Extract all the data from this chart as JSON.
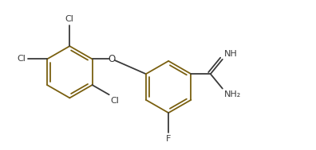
{
  "bg": "#ffffff",
  "bond_color": "#3a3a3a",
  "aromatic_color": "#7a6010",
  "lw": 1.3,
  "fs_label": 8.0,
  "figsize": [
    3.96,
    1.89
  ],
  "dpi": 100,
  "xlim": [
    0.0,
    9.5
  ],
  "ylim": [
    -0.5,
    4.5
  ]
}
